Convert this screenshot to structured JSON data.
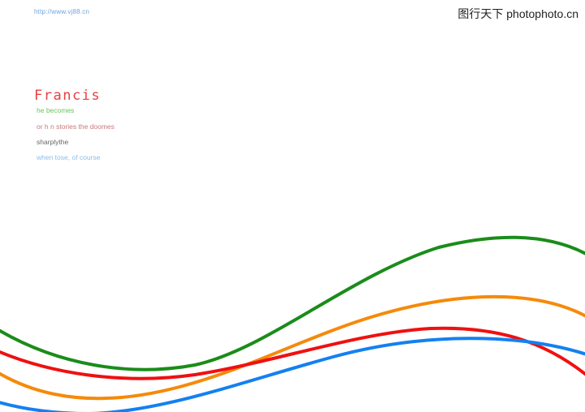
{
  "header": {
    "url": "http://www.vj88.cn",
    "watermark": "图行天下 photophoto.cn"
  },
  "card": {
    "title": "Francis",
    "lines": [
      "he becomes",
      "or h n stories the doomes",
      "sharplythe",
      "when tose, of course"
    ]
  },
  "waves": {
    "colors": {
      "green": "#1a8c1a",
      "orange": "#f58a0a",
      "red": "#f01010",
      "blue": "#1480f0"
    }
  }
}
